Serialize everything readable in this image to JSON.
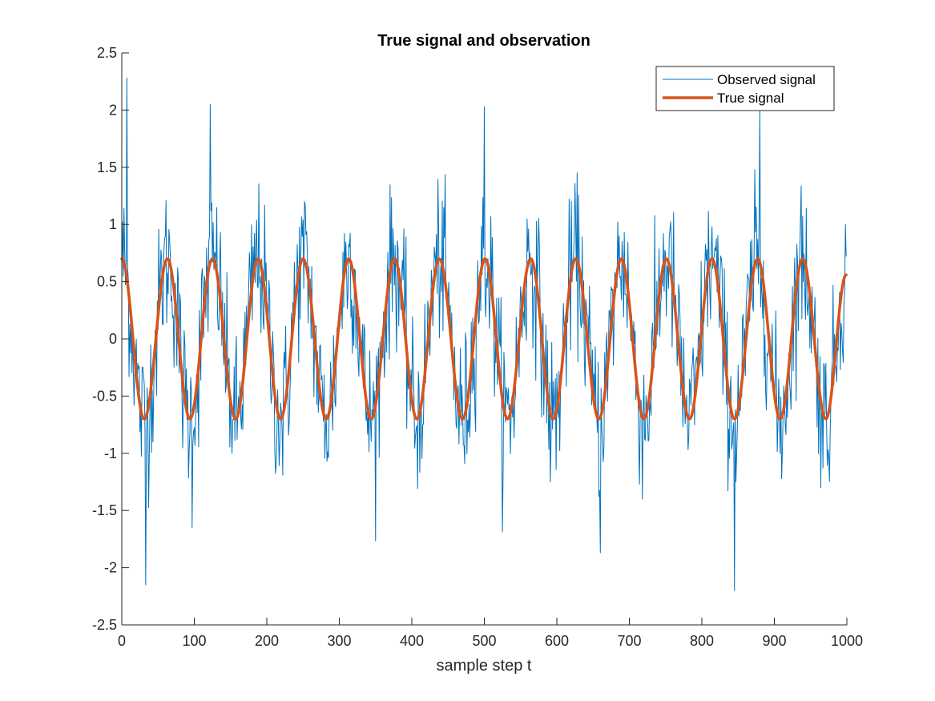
{
  "chart_data": {
    "type": "line",
    "title": "True signal and observation",
    "xlabel": "sample step t",
    "ylabel": "",
    "xlim": [
      0,
      1000
    ],
    "ylim": [
      -2.5,
      2.5
    ],
    "xticks": [
      "0",
      "100",
      "200",
      "300",
      "400",
      "500",
      "600",
      "700",
      "800",
      "900",
      "1000"
    ],
    "yticks": [
      "-2.5",
      "-2",
      "-1.5",
      "-1",
      "-0.5",
      "0",
      "0.5",
      "1",
      "1.5",
      "2",
      "2.5"
    ],
    "grid": false,
    "legend_position": "top-right",
    "series": [
      {
        "name": "Observed signal",
        "color": "#0072BD",
        "sample_rate": 1,
        "x_range": [
          0,
          999
        ],
        "description": "true signal plus random noise (approx. std 0.35)",
        "notable_extrema": [
          {
            "x": 7,
            "y": 2.28
          },
          {
            "x": 122,
            "y": 2.05
          },
          {
            "x": 500,
            "y": 2.03
          },
          {
            "x": 880,
            "y": 2.0
          },
          {
            "x": 33,
            "y": -2.15
          },
          {
            "x": 845,
            "y": -2.2
          },
          {
            "x": 660,
            "y": -1.87
          },
          {
            "x": 97,
            "y": -1.65
          }
        ]
      },
      {
        "name": "True signal",
        "color": "#D95319",
        "function": "0.7*cos(2*pi*t/62.6)",
        "x": [
          0,
          31,
          63,
          94,
          125,
          157,
          188,
          219,
          250,
          282,
          313,
          344,
          376,
          407,
          438,
          470,
          501,
          532,
          564,
          595,
          626,
          658,
          689,
          720,
          751,
          783,
          814,
          845,
          877,
          908,
          939,
          971,
          999
        ],
        "values": [
          0.7,
          -0.7,
          0.7,
          -0.7,
          0.7,
          -0.7,
          0.7,
          -0.7,
          0.7,
          -0.7,
          0.7,
          -0.7,
          0.7,
          -0.7,
          0.7,
          -0.7,
          0.7,
          -0.7,
          0.7,
          -0.7,
          0.7,
          -0.7,
          0.7,
          -0.7,
          0.7,
          -0.7,
          0.7,
          -0.7,
          0.7,
          -0.7,
          0.7,
          -0.7,
          0.56
        ]
      }
    ]
  }
}
